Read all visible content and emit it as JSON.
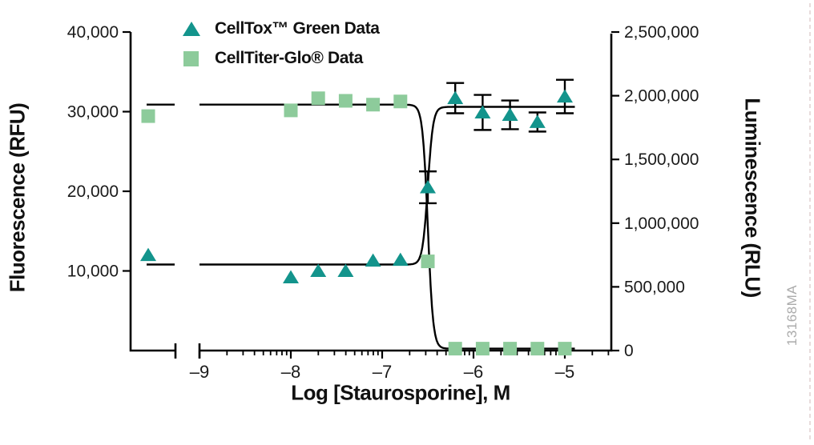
{
  "colors": {
    "celltox_teal": "#13948c",
    "celltiterglo_green": "#8dcb9b",
    "axis_black": "#000000",
    "tick_text": "#1a1a1a",
    "watermark_gray": "#ababab",
    "edge_artifact": "#d9c6c6"
  },
  "legend": {
    "items": [
      {
        "label": "CellTox™ Green Data",
        "marker": "triangle-icon",
        "series": "celltox"
      },
      {
        "label": "CellTiter-Glo® Data",
        "marker": "square-icon",
        "series": "celltiterglo"
      }
    ]
  },
  "axes": {
    "x": {
      "title": "Log [Staurosporine], M",
      "scale": "log",
      "broken_axis": true,
      "major_tick_values": [
        -9,
        -8,
        -7,
        -6,
        -5
      ],
      "major_tick_labels": [
        "–9",
        "–8",
        "–7",
        "–6",
        "–5"
      ],
      "range_shown": [
        -9,
        -4.5
      ]
    },
    "y_left": {
      "title": "Fluorescence (RFU)",
      "range": [
        0,
        40000
      ],
      "tick_values": [
        40000,
        30000,
        20000,
        10000
      ],
      "tick_labels": [
        "40,000",
        "30,000",
        "20,000",
        "10,000"
      ]
    },
    "y_right": {
      "title": "Luminescence (RLU)",
      "range": [
        0,
        2500000
      ],
      "tick_values": [
        2500000,
        2000000,
        1500000,
        1000000,
        500000,
        0
      ],
      "tick_labels": [
        "2,500,000",
        "2,000,000",
        "1,500,000",
        "1,000,000",
        "500,000",
        "0"
      ]
    }
  },
  "chart_data": {
    "type": "scatter",
    "title": "",
    "xlabel": "Log [Staurosporine], M",
    "note_pre_break_points": "x=null points are untreated controls plotted left of the axis break",
    "series": [
      {
        "name": "CellTox™ Green Data",
        "axis": "left",
        "units": "RFU",
        "marker": "triangle",
        "color": "#13948c",
        "points": [
          {
            "x": null,
            "y": 12000
          },
          {
            "x": -8.0,
            "y": 9200
          },
          {
            "x": -7.7,
            "y": 10000
          },
          {
            "x": -7.4,
            "y": 10000
          },
          {
            "x": -7.1,
            "y": 11300
          },
          {
            "x": -6.8,
            "y": 11400
          },
          {
            "x": -6.5,
            "y": 20500,
            "err": 2000
          },
          {
            "x": -6.2,
            "y": 31700,
            "err": 1900
          },
          {
            "x": -5.9,
            "y": 29900,
            "err": 2200
          },
          {
            "x": -5.6,
            "y": 29600,
            "err": 1800
          },
          {
            "x": -5.3,
            "y": 28700,
            "err": 1200
          },
          {
            "x": -5.0,
            "y": 31900,
            "err": 2100
          }
        ],
        "fit": {
          "model": "sigmoidal",
          "left_plateau": 10800,
          "right_plateau": 30600,
          "log_ec50": -6.5,
          "hill": 15
        }
      },
      {
        "name": "CellTiter-Glo® Data",
        "axis": "right",
        "units": "RLU",
        "marker": "square",
        "color": "#8dcb9b",
        "points": [
          {
            "x": null,
            "y": 1840000
          },
          {
            "x": -8.0,
            "y": 1885000
          },
          {
            "x": -7.7,
            "y": 1980000
          },
          {
            "x": -7.4,
            "y": 1960000
          },
          {
            "x": -7.1,
            "y": 1930000
          },
          {
            "x": -6.8,
            "y": 1955000
          },
          {
            "x": -6.5,
            "y": 700000
          },
          {
            "x": -6.2,
            "y": 15000
          },
          {
            "x": -5.9,
            "y": 15000
          },
          {
            "x": -5.6,
            "y": 15000
          },
          {
            "x": -5.3,
            "y": 15000
          },
          {
            "x": -5.0,
            "y": 15000
          }
        ],
        "fit": {
          "model": "sigmoidal",
          "left_plateau": 1930000,
          "right_plateau": 15000,
          "log_ec50": -6.5,
          "hill": 15
        }
      }
    ]
  },
  "watermark": "13168MA"
}
